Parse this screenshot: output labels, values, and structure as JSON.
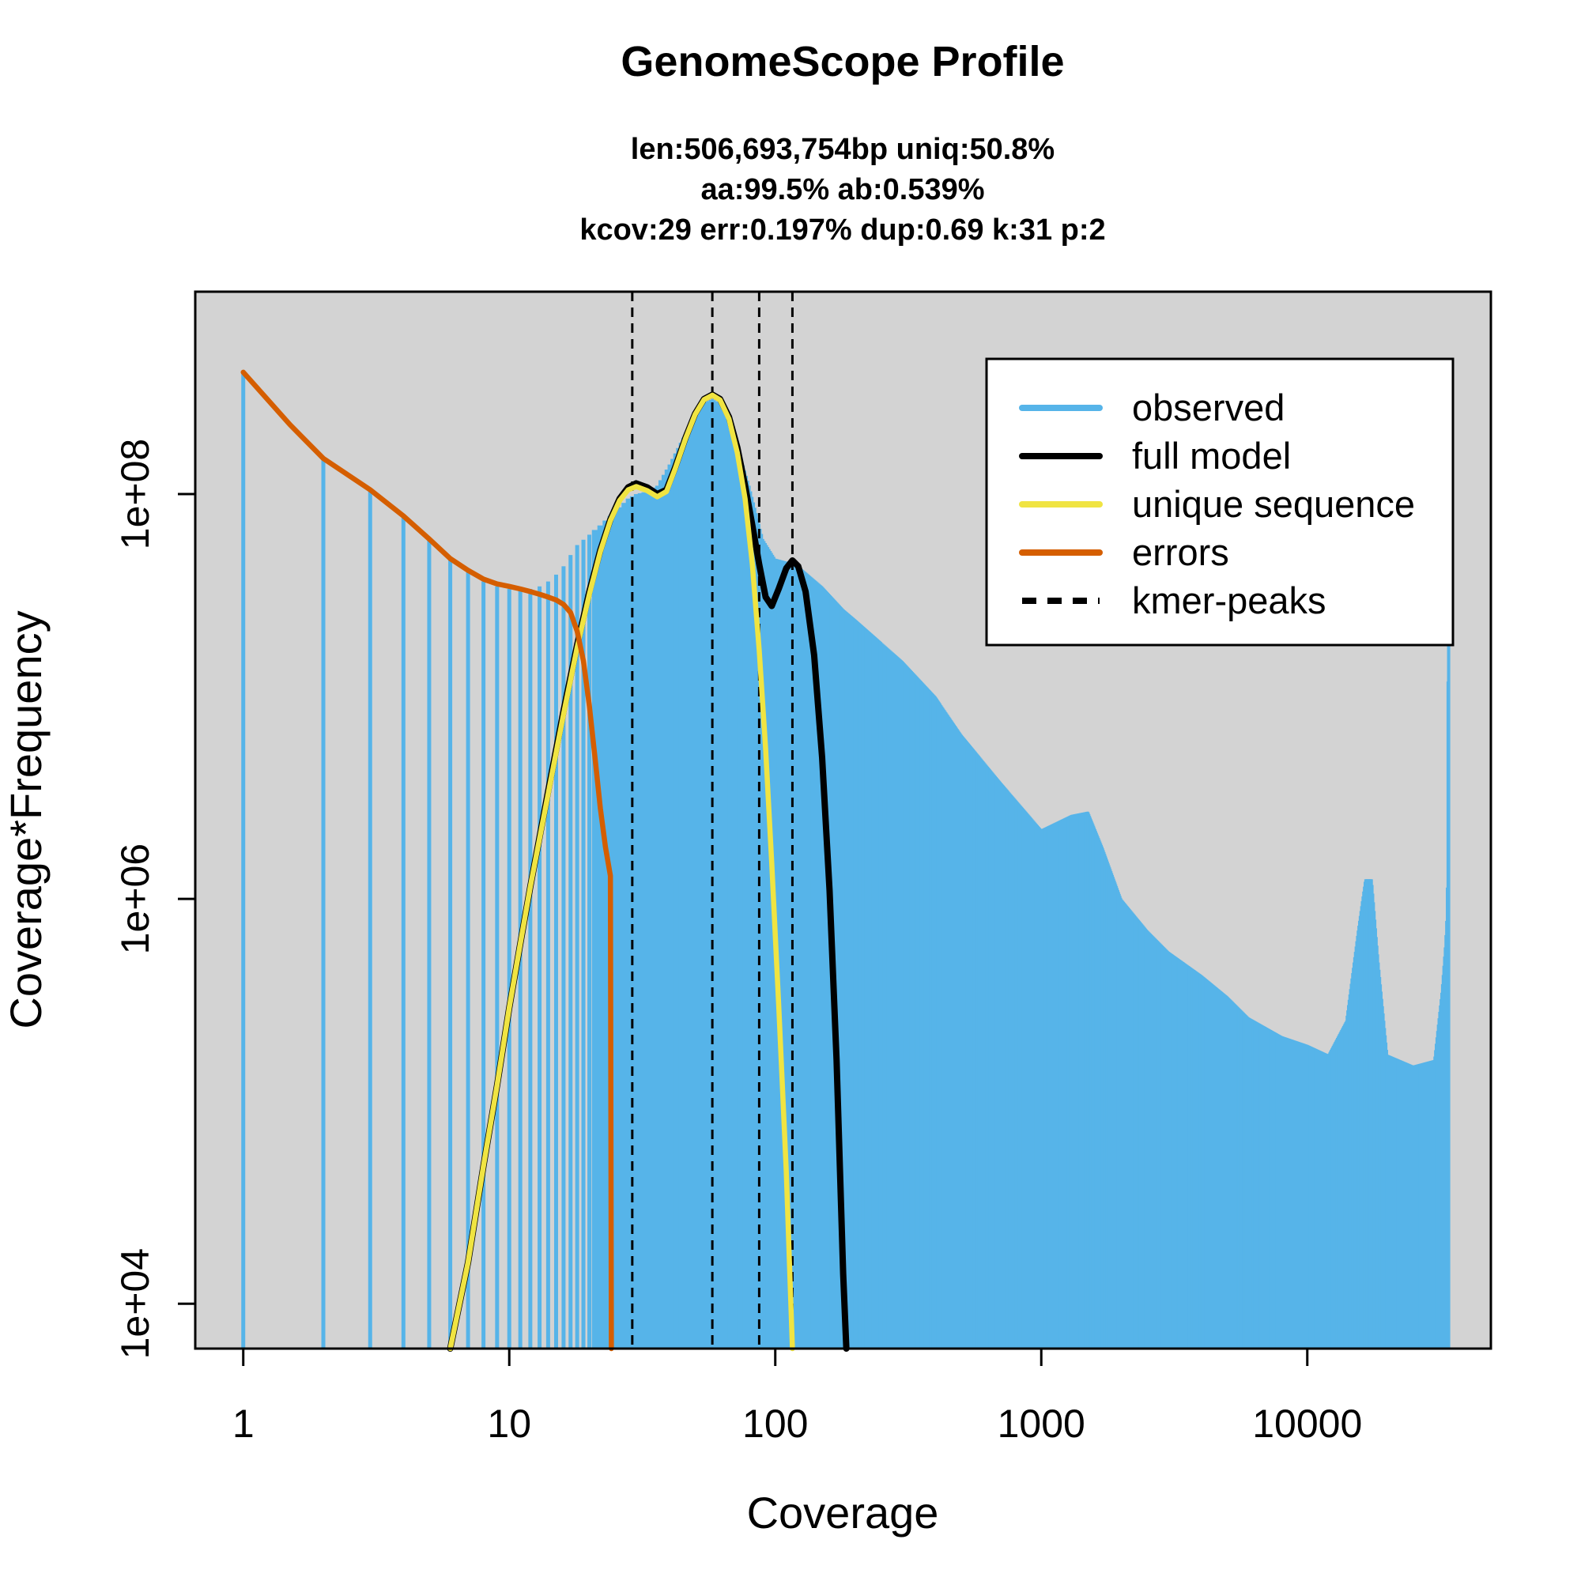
{
  "chart_data": {
    "type": "line",
    "title": "GenomeScope Profile",
    "subtitle_lines": [
      "len:506,693,754bp uniq:50.8%",
      "aa:99.5% ab:0.539%",
      "kcov:29 err:0.197%  dup:0.69  k:31 p:2"
    ],
    "xlabel": "Coverage",
    "ylabel": "Coverage*Frequency",
    "x_scale": "log",
    "y_scale": "log",
    "xlim": [
      0.66,
      49000
    ],
    "ylim": [
      6000,
      1000000000
    ],
    "x_ticks": [
      1,
      10,
      100,
      1000,
      10000
    ],
    "x_tick_labels": [
      "1",
      "10",
      "100",
      "1000",
      "10000"
    ],
    "y_ticks": [
      10000,
      1000000,
      100000000
    ],
    "y_tick_labels": [
      "1e+04",
      "1e+06",
      "1e+08"
    ],
    "grid": false,
    "background_color": "#d3d3d3",
    "legend_position": "top-right",
    "legend": [
      {
        "label": "observed",
        "color": "#56B4E9",
        "style": "solid"
      },
      {
        "label": "full model",
        "color": "#000000",
        "style": "solid"
      },
      {
        "label": "unique sequence",
        "color": "#F0E442",
        "style": "solid"
      },
      {
        "label": "errors",
        "color": "#D55E00",
        "style": "solid"
      },
      {
        "label": "kmer-peaks",
        "color": "#000000",
        "style": "dashed"
      }
    ],
    "kmer_peaks": [
      29,
      58,
      87,
      116
    ],
    "series": [
      {
        "name": "observed",
        "color": "#56B4E9",
        "type": "histogram",
        "points": [
          [
            1,
            400000000
          ],
          [
            2,
            150000000
          ],
          [
            3,
            105000000
          ],
          [
            4,
            78000000
          ],
          [
            5,
            60000000
          ],
          [
            6,
            48000000
          ],
          [
            7,
            42000000
          ],
          [
            8,
            37000000
          ],
          [
            9,
            35000000
          ],
          [
            10,
            34000000
          ],
          [
            11,
            33500000
          ],
          [
            12,
            34000000
          ],
          [
            13,
            35000000
          ],
          [
            14,
            37000000
          ],
          [
            15,
            40000000
          ],
          [
            16,
            44000000
          ],
          [
            17,
            50000000
          ],
          [
            18,
            56000000
          ],
          [
            20,
            63000000
          ],
          [
            22,
            70000000
          ],
          [
            24,
            78000000
          ],
          [
            26,
            86000000
          ],
          [
            28,
            95000000
          ],
          [
            30,
            100000000
          ],
          [
            33,
            103000000
          ],
          [
            36,
            110000000
          ],
          [
            40,
            140000000
          ],
          [
            45,
            190000000
          ],
          [
            50,
            250000000
          ],
          [
            55,
            285000000
          ],
          [
            58,
            295000000
          ],
          [
            62,
            280000000
          ],
          [
            70,
            200000000
          ],
          [
            80,
            110000000
          ],
          [
            90,
            60000000
          ],
          [
            100,
            48000000
          ],
          [
            120,
            45000000
          ],
          [
            150,
            35000000
          ],
          [
            180,
            27000000
          ],
          [
            200,
            24000000
          ],
          [
            300,
            15000000
          ],
          [
            400,
            10000000
          ],
          [
            500,
            6500000
          ],
          [
            700,
            3800000
          ],
          [
            1000,
            2200000
          ],
          [
            1300,
            2600000
          ],
          [
            1500,
            2700000
          ],
          [
            1700,
            1800000
          ],
          [
            2000,
            1000000
          ],
          [
            2500,
            700000
          ],
          [
            3000,
            550000
          ],
          [
            4000,
            420000
          ],
          [
            5000,
            330000
          ],
          [
            6000,
            260000
          ],
          [
            8000,
            210000
          ],
          [
            10000,
            190000
          ],
          [
            12000,
            170000
          ],
          [
            14000,
            250000
          ],
          [
            15500,
            700000
          ],
          [
            16500,
            1250000
          ],
          [
            17500,
            1250000
          ],
          [
            18500,
            500000
          ],
          [
            20000,
            170000
          ],
          [
            25000,
            150000
          ],
          [
            30000,
            160000
          ],
          [
            32000,
            350000
          ],
          [
            33000,
            600000
          ],
          [
            33500,
            900000
          ],
          [
            34000,
            300000000
          ]
        ]
      },
      {
        "name": "full model",
        "color": "#000000",
        "points": [
          [
            6,
            5000
          ],
          [
            7,
            16000
          ],
          [
            8,
            48000
          ],
          [
            9,
            120000
          ],
          [
            10,
            290000
          ],
          [
            11,
            600000
          ],
          [
            12,
            1150000
          ],
          [
            14,
            3400000
          ],
          [
            16,
            8500000
          ],
          [
            18,
            18000000
          ],
          [
            20,
            33000000
          ],
          [
            22,
            53000000
          ],
          [
            24,
            75000000
          ],
          [
            26,
            95000000
          ],
          [
            28,
            108000000
          ],
          [
            30,
            113000000
          ],
          [
            33,
            108000000
          ],
          [
            36,
            100000000
          ],
          [
            39,
            105000000
          ],
          [
            42,
            135000000
          ],
          [
            46,
            190000000
          ],
          [
            50,
            250000000
          ],
          [
            54,
            295000000
          ],
          [
            58,
            310000000
          ],
          [
            62,
            295000000
          ],
          [
            67,
            240000000
          ],
          [
            72,
            170000000
          ],
          [
            77,
            110000000
          ],
          [
            82,
            70000000
          ],
          [
            87,
            45000000
          ],
          [
            92,
            31000000
          ],
          [
            97,
            28000000
          ],
          [
            103,
            34000000
          ],
          [
            110,
            43000000
          ],
          [
            116,
            47000000
          ],
          [
            122,
            44000000
          ],
          [
            130,
            33000000
          ],
          [
            140,
            16000000
          ],
          [
            150,
            5000000
          ],
          [
            160,
            1100000
          ],
          [
            170,
            160000
          ],
          [
            180,
            14000
          ],
          [
            185,
            4000
          ]
        ]
      },
      {
        "name": "unique sequence",
        "color": "#F0E442",
        "points": [
          [
            6,
            5000
          ],
          [
            7,
            16000
          ],
          [
            8,
            48000
          ],
          [
            9,
            120000
          ],
          [
            10,
            290000
          ],
          [
            11,
            600000
          ],
          [
            12,
            1150000
          ],
          [
            14,
            3300000
          ],
          [
            16,
            8200000
          ],
          [
            18,
            17500000
          ],
          [
            20,
            32000000
          ],
          [
            22,
            52000000
          ],
          [
            24,
            74000000
          ],
          [
            26,
            93000000
          ],
          [
            28,
            105000000
          ],
          [
            30,
            109000000
          ],
          [
            33,
            104000000
          ],
          [
            36,
            97000000
          ],
          [
            39,
            103000000
          ],
          [
            42,
            133000000
          ],
          [
            46,
            188000000
          ],
          [
            50,
            248000000
          ],
          [
            54,
            293000000
          ],
          [
            58,
            308000000
          ],
          [
            62,
            292000000
          ],
          [
            67,
            235000000
          ],
          [
            72,
            160000000
          ],
          [
            77,
            95000000
          ],
          [
            82,
            45000000
          ],
          [
            87,
            17000000
          ],
          [
            92,
            5500000
          ],
          [
            97,
            1500000
          ],
          [
            103,
            300000
          ],
          [
            110,
            45000
          ],
          [
            116,
            5000
          ]
        ]
      },
      {
        "name": "errors",
        "color": "#D55E00",
        "points": [
          [
            1,
            400000000
          ],
          [
            1.5,
            220000000
          ],
          [
            2,
            150000000
          ],
          [
            3,
            105000000
          ],
          [
            4,
            78000000
          ],
          [
            5,
            60000000
          ],
          [
            6,
            48000000
          ],
          [
            7,
            42000000
          ],
          [
            8,
            38000000
          ],
          [
            9,
            36000000
          ],
          [
            10,
            35000000
          ],
          [
            11,
            34000000
          ],
          [
            12,
            33000000
          ],
          [
            13,
            32000000
          ],
          [
            14,
            31000000
          ],
          [
            15,
            30000000
          ],
          [
            16,
            28500000
          ],
          [
            17,
            26000000
          ],
          [
            18,
            21000000
          ],
          [
            19,
            15000000
          ],
          [
            20,
            9000000
          ],
          [
            21,
            5000000
          ],
          [
            22,
            2800000
          ],
          [
            23,
            1800000
          ],
          [
            24,
            1300000
          ],
          [
            24.2,
            5000
          ]
        ]
      }
    ]
  }
}
